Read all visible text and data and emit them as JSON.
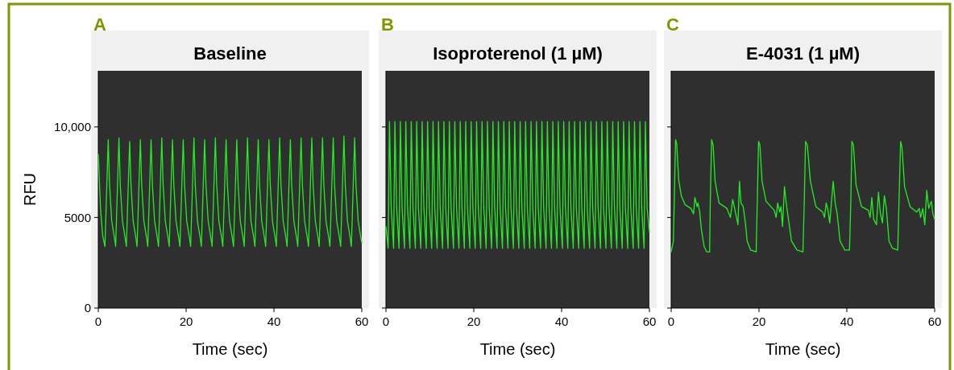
{
  "chart_data": [
    {
      "type": "line",
      "title": "Baseline",
      "annotations": [
        "A"
      ],
      "xlabel": "Time (sec)",
      "ylabel": "RFU",
      "color": "#22ee22",
      "xlim": [
        0,
        60
      ],
      "xticks": [
        0,
        20,
        40,
        60
      ],
      "ylim": [
        0,
        13100
      ],
      "yticks": [
        0,
        5000,
        {
          "value": 10000,
          "label": "10,000"
        }
      ],
      "x": [
        0,
        0.5,
        1.0,
        1.51,
        2.26,
        2.56,
        3.06,
        3.66,
        3.95,
        4.7,
        5.0,
        5.5,
        6.1,
        6.39,
        7.14,
        7.44,
        7.94,
        8.54,
        8.83,
        9.58,
        9.88,
        10.38,
        10.98,
        11.27,
        12.02,
        12.32,
        12.82,
        13.42,
        13.71,
        14.46,
        14.76,
        15.26,
        15.86,
        16.15,
        16.9,
        17.2,
        17.7,
        18.3,
        18.59,
        19.34,
        19.64,
        20.14,
        20.74,
        21.03,
        21.78,
        22.08,
        22.58,
        23.18,
        23.47,
        24.22,
        24.52,
        25.02,
        25.62,
        25.91,
        26.66,
        26.96,
        27.46,
        28.06,
        28.35,
        29.1,
        29.4,
        29.9,
        30.5,
        30.79,
        31.54,
        31.84,
        32.34,
        32.94,
        33.23,
        33.98,
        34.28,
        34.78,
        35.38,
        35.67,
        36.42,
        36.72,
        37.22,
        37.82,
        38.11,
        38.86,
        39.16,
        39.66,
        40.26,
        40.55,
        41.3,
        41.6,
        42.1,
        42.7,
        42.99,
        43.74,
        44.04,
        44.54,
        45.14,
        45.43,
        46.18,
        46.48,
        46.98,
        47.58,
        47.87,
        48.62,
        48.92,
        49.42,
        50.02,
        50.31,
        51.06,
        51.36,
        51.86,
        52.46,
        52.75,
        53.5,
        53.8,
        54.3,
        54.9,
        55.19,
        55.94,
        56.24,
        56.74,
        57.34,
        57.63,
        58.38,
        58.68,
        59.18,
        59.78,
        60
      ],
      "values": [
        8500,
        5500,
        4000,
        3400,
        9300,
        6800,
        4800,
        3900,
        3400,
        9400,
        6800,
        4800,
        3900,
        3400,
        9200,
        6800,
        4800,
        3900,
        3400,
        9300,
        6800,
        4800,
        3900,
        3400,
        9300,
        6800,
        4800,
        3900,
        3400,
        9400,
        6800,
        4800,
        3900,
        3400,
        9300,
        6800,
        4800,
        3900,
        3400,
        9300,
        6800,
        4800,
        3900,
        3400,
        9400,
        6800,
        4800,
        3900,
        3400,
        9300,
        6800,
        4800,
        3900,
        3400,
        9400,
        6800,
        4800,
        3900,
        3400,
        9300,
        6800,
        4800,
        3900,
        3400,
        9300,
        6800,
        4800,
        3900,
        3400,
        9400,
        6800,
        4800,
        3900,
        3400,
        9300,
        6800,
        4800,
        3900,
        3400,
        9300,
        6800,
        4800,
        3900,
        3400,
        9400,
        6800,
        4800,
        3900,
        3400,
        9300,
        6800,
        4800,
        3900,
        3400,
        9400,
        6800,
        4800,
        3900,
        3400,
        9400,
        6800,
        4800,
        3900,
        3400,
        9400,
        6800,
        4800,
        3900,
        3400,
        9400,
        6800,
        4800,
        3900,
        3400,
        9500,
        6800,
        4800,
        3900,
        3400,
        9400,
        6800,
        4800,
        3900,
        3600
      ]
    },
    {
      "type": "line",
      "title": "Isoproterenol (1 µM)",
      "annotations": [
        "B"
      ],
      "xlabel": "Time (sec)",
      "color": "#22ee22",
      "xlim": [
        0,
        60
      ],
      "xticks": [
        0,
        20,
        40,
        60
      ],
      "ylim": [
        0,
        13100
      ],
      "yticks": [
        {
          "value": 0,
          "label": null
        },
        {
          "value": 5000,
          "label": null
        },
        {
          "value": 10000,
          "label": null
        }
      ],
      "tick_labels": "x",
      "x": [
        0,
        0.5,
        0.8,
        1.2,
        1.74,
        2.04,
        2.44,
        2.98,
        3.28,
        3.68,
        4.22,
        4.52,
        4.92,
        5.46,
        5.76,
        6.16,
        6.7,
        7.0,
        7.4,
        7.94,
        8.24,
        8.64,
        9.18,
        9.48,
        9.88,
        10.42,
        10.72,
        11.12,
        11.66,
        11.96,
        12.36,
        12.9,
        13.2,
        13.6,
        14.14,
        14.44,
        14.84,
        15.38,
        15.68,
        16.08,
        16.62,
        16.92,
        17.32,
        17.86,
        18.16,
        18.56,
        19.1,
        19.4,
        19.8,
        20.34,
        20.64,
        21.04,
        21.58,
        21.88,
        22.28,
        22.82,
        23.12,
        23.52,
        24.06,
        24.36,
        24.76,
        25.3,
        25.6,
        26.0,
        26.54,
        26.84,
        27.24,
        27.78,
        28.08,
        28.48,
        29.02,
        29.32,
        29.72,
        30.26,
        30.56,
        30.96,
        31.5,
        31.8,
        32.2,
        32.74,
        33.04,
        33.44,
        33.98,
        34.28,
        34.68,
        35.22,
        35.52,
        35.92,
        36.46,
        36.76,
        37.16,
        37.7,
        38.0,
        38.4,
        38.94,
        39.24,
        39.64,
        40.18,
        40.48,
        40.88,
        41.42,
        41.72,
        42.12,
        42.66,
        42.96,
        43.36,
        43.9,
        44.2,
        44.6,
        45.14,
        45.44,
        45.84,
        46.38,
        46.68,
        47.08,
        47.62,
        47.92,
        48.32,
        48.86,
        49.16,
        49.56,
        50.1,
        50.4,
        50.8,
        51.34,
        51.64,
        52.04,
        52.58,
        52.88,
        53.28,
        53.82,
        54.12,
        54.52,
        55.06,
        55.36,
        55.76,
        56.3,
        56.6,
        57.0,
        57.54,
        57.84,
        58.24,
        58.78,
        59.08,
        59.48,
        60
      ],
      "values": [
        4500,
        3300,
        10300,
        5500,
        3300,
        10300,
        5500,
        3300,
        10300,
        5500,
        3300,
        10300,
        5500,
        3300,
        10300,
        5500,
        3300,
        10300,
        5500,
        3300,
        10300,
        5500,
        3300,
        10300,
        5500,
        3300,
        10300,
        5500,
        3300,
        10300,
        5500,
        3300,
        10300,
        5500,
        3300,
        10300,
        5500,
        3300,
        10300,
        5500,
        3300,
        10300,
        5500,
        3300,
        10300,
        5500,
        3300,
        10300,
        5500,
        3300,
        10300,
        5500,
        3300,
        10300,
        5500,
        3300,
        10300,
        5500,
        3300,
        10300,
        5500,
        3300,
        10300,
        5500,
        3300,
        10300,
        5500,
        3300,
        10300,
        5500,
        3300,
        10300,
        5500,
        3300,
        10300,
        5500,
        3300,
        10300,
        5500,
        3300,
        10300,
        5500,
        3300,
        10300,
        5500,
        3300,
        10300,
        5500,
        3300,
        10300,
        5500,
        3300,
        10300,
        5500,
        3300,
        10300,
        5500,
        3300,
        10300,
        5500,
        3300,
        10300,
        5500,
        3300,
        10300,
        5500,
        3300,
        10300,
        5500,
        3300,
        10300,
        5500,
        3300,
        10300,
        5500,
        3300,
        10300,
        5500,
        3300,
        10300,
        5500,
        3300,
        10300,
        5500,
        3300,
        10300,
        5500,
        3300,
        10300,
        5500,
        3300,
        10300,
        5500,
        3300,
        10300,
        5500,
        3300,
        10300,
        5500,
        3300,
        10300,
        5500,
        3300,
        10300,
        5500,
        4200
      ]
    },
    {
      "type": "line",
      "title": "E-4031 (1 µM)",
      "annotations": [
        "C"
      ],
      "xlabel": "Time (sec)",
      "color": "#22ee22",
      "xlim": [
        0,
        60
      ],
      "xticks": [
        0,
        20,
        40,
        60
      ],
      "ylim": [
        0,
        13100
      ],
      "yticks": [
        {
          "value": 0,
          "label": null
        },
        {
          "value": 5000,
          "label": null
        },
        {
          "value": 10000,
          "label": null
        }
      ],
      "tick_labels": "x",
      "x": [
        0,
        0.5,
        1.0,
        1.25,
        1.7,
        2.3,
        3.2,
        4.5,
        5.1,
        5.4,
        5.9,
        6.1,
        6.5,
        6.9,
        7.5,
        8.1,
        8.75,
        8.9,
        9.2,
        9.55,
        10.0,
        10.9,
        12.7,
        13.5,
        14.0,
        14.45,
        15.2,
        15.55,
        15.9,
        16.4,
        16.9,
        17.3,
        18.1,
        19.35,
        19.6,
        19.9,
        20.2,
        20.7,
        21.6,
        23.45,
        23.9,
        24.25,
        24.7,
        25.0,
        25.35,
        25.8,
        26.2,
        26.7,
        27.4,
        28.65,
        30.0,
        30.3,
        30.6,
        31.0,
        31.7,
        32.95,
        34.5,
        34.9,
        35.3,
        35.7,
        36.1,
        36.9,
        37.35,
        37.8,
        38.45,
        39.55,
        40.6,
        40.9,
        41.15,
        41.5,
        42.1,
        43.35,
        44.9,
        45.3,
        45.7,
        46.1,
        46.75,
        47.2,
        47.65,
        48.1,
        48.55,
        49.0,
        49.6,
        50.4,
        51.6,
        51.9,
        52.25,
        52.55,
        53.15,
        54.4,
        55.9,
        56.5,
        56.8,
        57.3,
        57.75,
        58.2,
        58.65,
        59.25,
        59.6,
        60
      ],
      "values": [
        3100,
        3700,
        9300,
        9100,
        7100,
        6200,
        5700,
        5500,
        5200,
        6100,
        5600,
        5800,
        5300,
        4300,
        3400,
        3100,
        3100,
        5800,
        9300,
        9000,
        7000,
        5800,
        5500,
        5000,
        6000,
        5500,
        4600,
        7000,
        5800,
        5600,
        4700,
        3700,
        3200,
        3100,
        5800,
        9200,
        9000,
        7000,
        5900,
        5400,
        5000,
        5800,
        5300,
        5600,
        4500,
        6700,
        5800,
        4900,
        3700,
        3200,
        3100,
        5800,
        9200,
        9000,
        7000,
        5600,
        5300,
        5000,
        5800,
        5400,
        4700,
        7000,
        5800,
        5200,
        3700,
        3200,
        3200,
        5800,
        9200,
        9000,
        6800,
        5600,
        5400,
        5000,
        6100,
        4900,
        4600,
        6400,
        5200,
        4700,
        6200,
        5500,
        3700,
        3300,
        3200,
        6100,
        9200,
        8900,
        6700,
        5600,
        5300,
        5500,
        5000,
        5500,
        4600,
        6500,
        5500,
        5900,
        5200,
        4900
      ]
    }
  ]
}
